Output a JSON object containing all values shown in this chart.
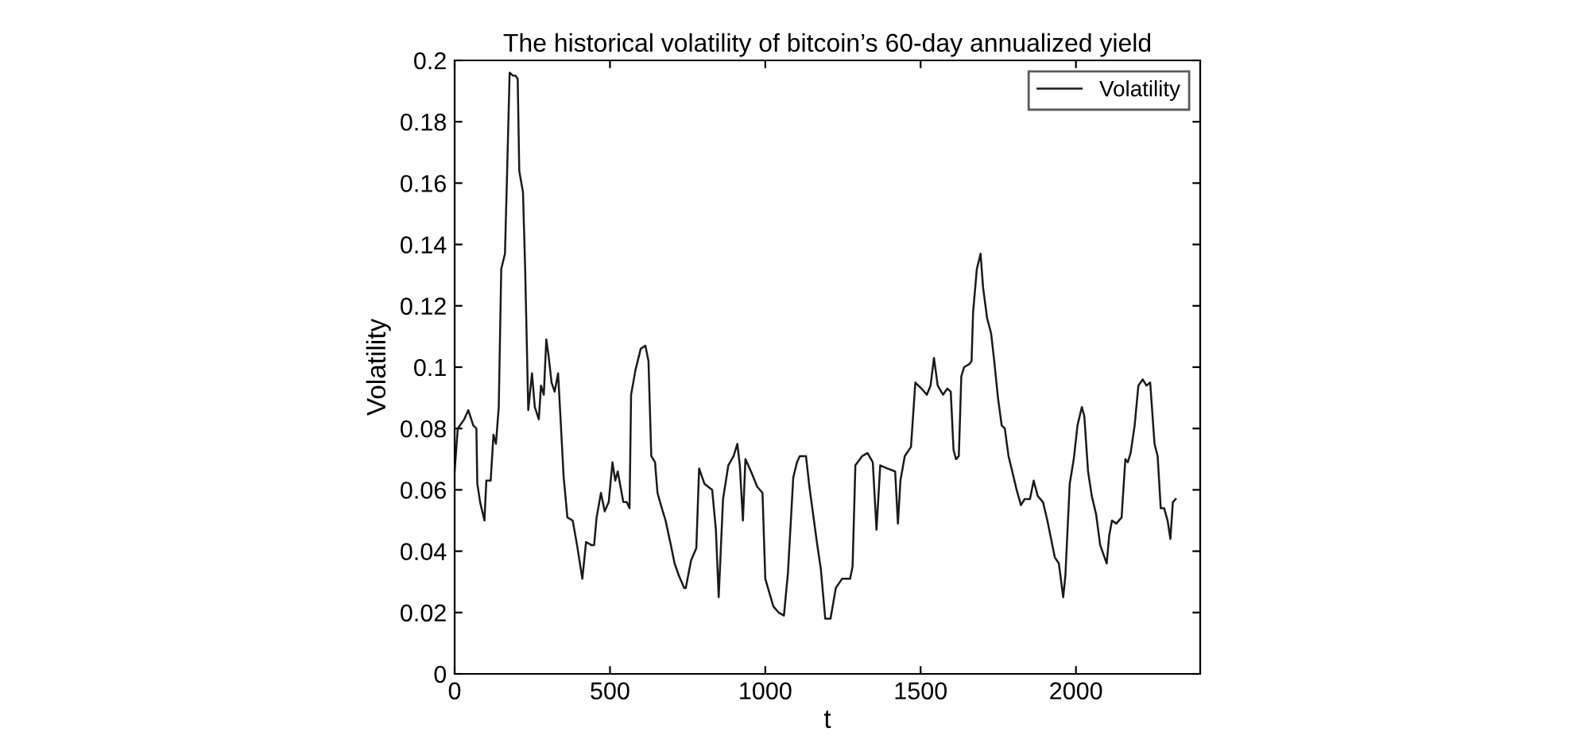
{
  "chart_data": {
    "type": "line",
    "title": "The historical volatility of bitcoin’s 60-day annualized yield",
    "xlabel": "t",
    "ylabel": "Volatility",
    "xlim": [
      0,
      2400
    ],
    "xticks": [
      0,
      500,
      1000,
      1500,
      2000
    ],
    "ylim": [
      0,
      0.2
    ],
    "yticks": [
      0,
      0.02,
      0.04,
      0.06,
      0.08,
      0.1,
      0.12,
      0.14,
      0.16,
      0.18,
      0.2
    ],
    "grid": false,
    "legend": "top right",
    "marker": "none",
    "line_style": "solid",
    "series": [
      {
        "name": "Volatility",
        "color": "#1a1a1a",
        "x": [
          0,
          10,
          31,
          44,
          60,
          70,
          73,
          82,
          96,
          102,
          116,
          125,
          133,
          142,
          150,
          162,
          169,
          177,
          188,
          196,
          203,
          208,
          220,
          227,
          237,
          249,
          258,
          271,
          278,
          287,
          295,
          302,
          312,
          322,
          333,
          341,
          351,
          363,
          380,
          394,
          411,
          423,
          440,
          449,
          457,
          471,
          483,
          496,
          508,
          517,
          525,
          543,
          554,
          563,
          568,
          582,
          599,
          614,
          624,
          633,
          645,
          653,
          667,
          679,
          696,
          708,
          722,
          739,
          744,
          761,
          778,
          787,
          804,
          829,
          841,
          850,
          864,
          881,
          898,
          910,
          918,
          928,
          936,
          954,
          974,
          991,
          1000,
          1026,
          1043,
          1060,
          1073,
          1090,
          1102,
          1111,
          1131,
          1142,
          1166,
          1179,
          1193,
          1210,
          1227,
          1247,
          1273,
          1281,
          1290,
          1312,
          1329,
          1346,
          1358,
          1370,
          1392,
          1418,
          1427,
          1435,
          1449,
          1469,
          1483,
          1503,
          1520,
          1532,
          1543,
          1555,
          1572,
          1586,
          1597,
          1606,
          1614,
          1623,
          1631,
          1640,
          1657,
          1664,
          1669,
          1681,
          1693,
          1701,
          1714,
          1727,
          1737,
          1749,
          1761,
          1771,
          1783,
          1795,
          1809,
          1823,
          1835,
          1852,
          1864,
          1877,
          1894,
          1908,
          1920,
          1932,
          1945,
          1959,
          1966,
          1980,
          1993,
          2005,
          2019,
          2027,
          2039,
          2051,
          2065,
          2078,
          2099,
          2107,
          2116,
          2130,
          2147,
          2159,
          2167,
          2176,
          2189,
          2201,
          2215,
          2227,
          2239,
          2253,
          2263,
          2273,
          2284,
          2295,
          2304,
          2312,
          2321
        ],
        "values": [
          0.066,
          0.08,
          0.083,
          0.086,
          0.081,
          0.08,
          0.062,
          0.056,
          0.05,
          0.063,
          0.063,
          0.078,
          0.075,
          0.087,
          0.132,
          0.137,
          0.164,
          0.196,
          0.195,
          0.195,
          0.194,
          0.164,
          0.157,
          0.132,
          0.086,
          0.098,
          0.087,
          0.083,
          0.094,
          0.091,
          0.109,
          0.104,
          0.095,
          0.092,
          0.098,
          0.083,
          0.064,
          0.051,
          0.05,
          0.042,
          0.031,
          0.043,
          0.042,
          0.042,
          0.051,
          0.059,
          0.053,
          0.056,
          0.069,
          0.063,
          0.066,
          0.056,
          0.056,
          0.054,
          0.091,
          0.099,
          0.106,
          0.107,
          0.102,
          0.071,
          0.069,
          0.059,
          0.054,
          0.05,
          0.042,
          0.036,
          0.032,
          0.028,
          0.028,
          0.037,
          0.041,
          0.067,
          0.062,
          0.06,
          0.047,
          0.025,
          0.057,
          0.068,
          0.071,
          0.075,
          0.068,
          0.05,
          0.07,
          0.066,
          0.061,
          0.059,
          0.031,
          0.022,
          0.02,
          0.019,
          0.033,
          0.064,
          0.069,
          0.071,
          0.071,
          0.061,
          0.043,
          0.034,
          0.018,
          0.018,
          0.028,
          0.031,
          0.031,
          0.035,
          0.068,
          0.071,
          0.072,
          0.069,
          0.047,
          0.068,
          0.067,
          0.066,
          0.049,
          0.063,
          0.071,
          0.074,
          0.095,
          0.093,
          0.091,
          0.094,
          0.103,
          0.094,
          0.091,
          0.093,
          0.092,
          0.073,
          0.07,
          0.071,
          0.097,
          0.1,
          0.101,
          0.102,
          0.118,
          0.132,
          0.137,
          0.126,
          0.116,
          0.111,
          0.102,
          0.09,
          0.081,
          0.08,
          0.071,
          0.066,
          0.06,
          0.055,
          0.057,
          0.057,
          0.063,
          0.058,
          0.056,
          0.05,
          0.044,
          0.038,
          0.036,
          0.025,
          0.032,
          0.062,
          0.07,
          0.081,
          0.087,
          0.084,
          0.066,
          0.058,
          0.052,
          0.042,
          0.036,
          0.045,
          0.05,
          0.049,
          0.051,
          0.07,
          0.069,
          0.072,
          0.081,
          0.094,
          0.096,
          0.094,
          0.095,
          0.075,
          0.071,
          0.054,
          0.054,
          0.05,
          0.044,
          0.056,
          0.057
        ]
      }
    ]
  }
}
